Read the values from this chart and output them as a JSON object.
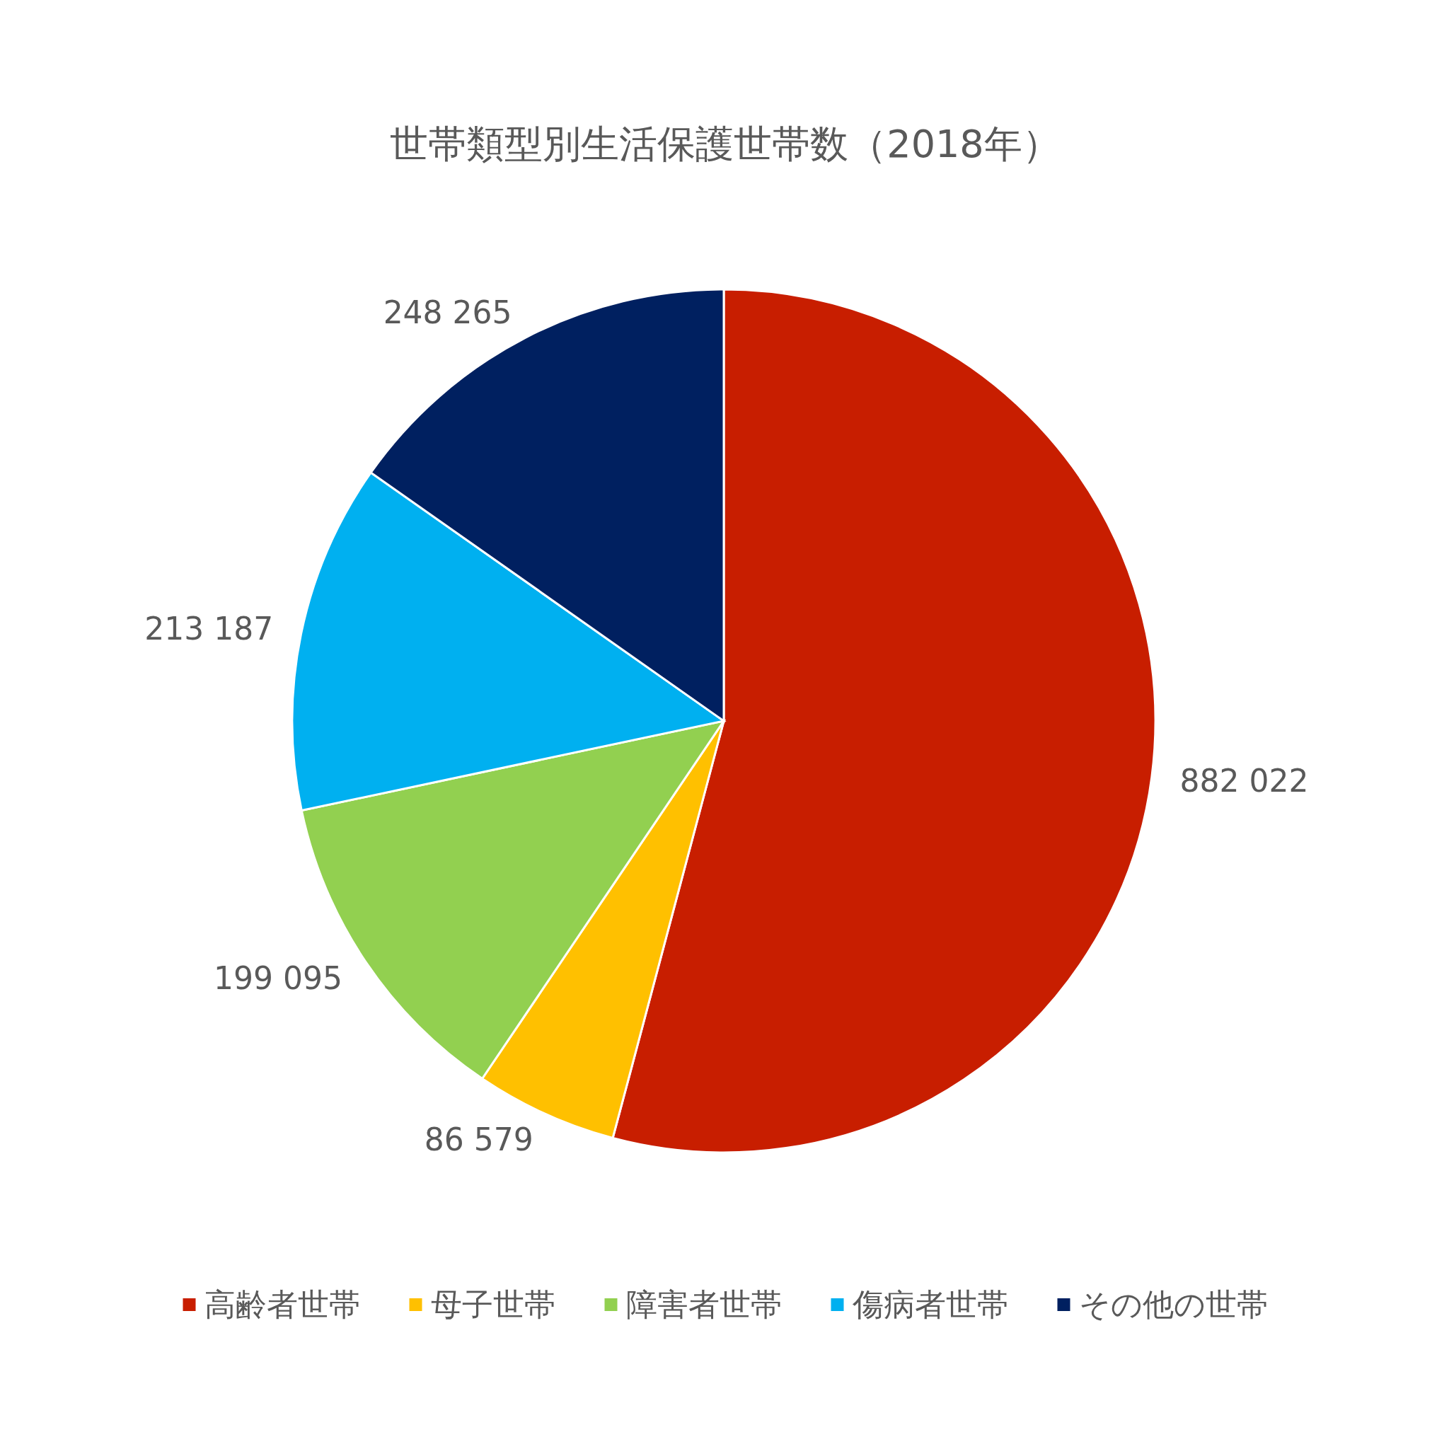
{
  "chart_data": {
    "type": "pie",
    "title": "世帯類型別生活保護世帯数（2018年）",
    "categories": [
      "高齢者世帯",
      "母子世帯",
      "障害者世帯",
      "傷病者世帯",
      "その他の世帯"
    ],
    "values": [
      882022,
      86579,
      199095,
      213187,
      248265
    ],
    "value_labels": [
      "882 022",
      "86 579",
      "199 095",
      "213 187",
      "248 265"
    ],
    "colors": [
      "#c81e00",
      "#ffc000",
      "#92d050",
      "#00b0f0",
      "#002060"
    ],
    "legend": "bottom"
  }
}
